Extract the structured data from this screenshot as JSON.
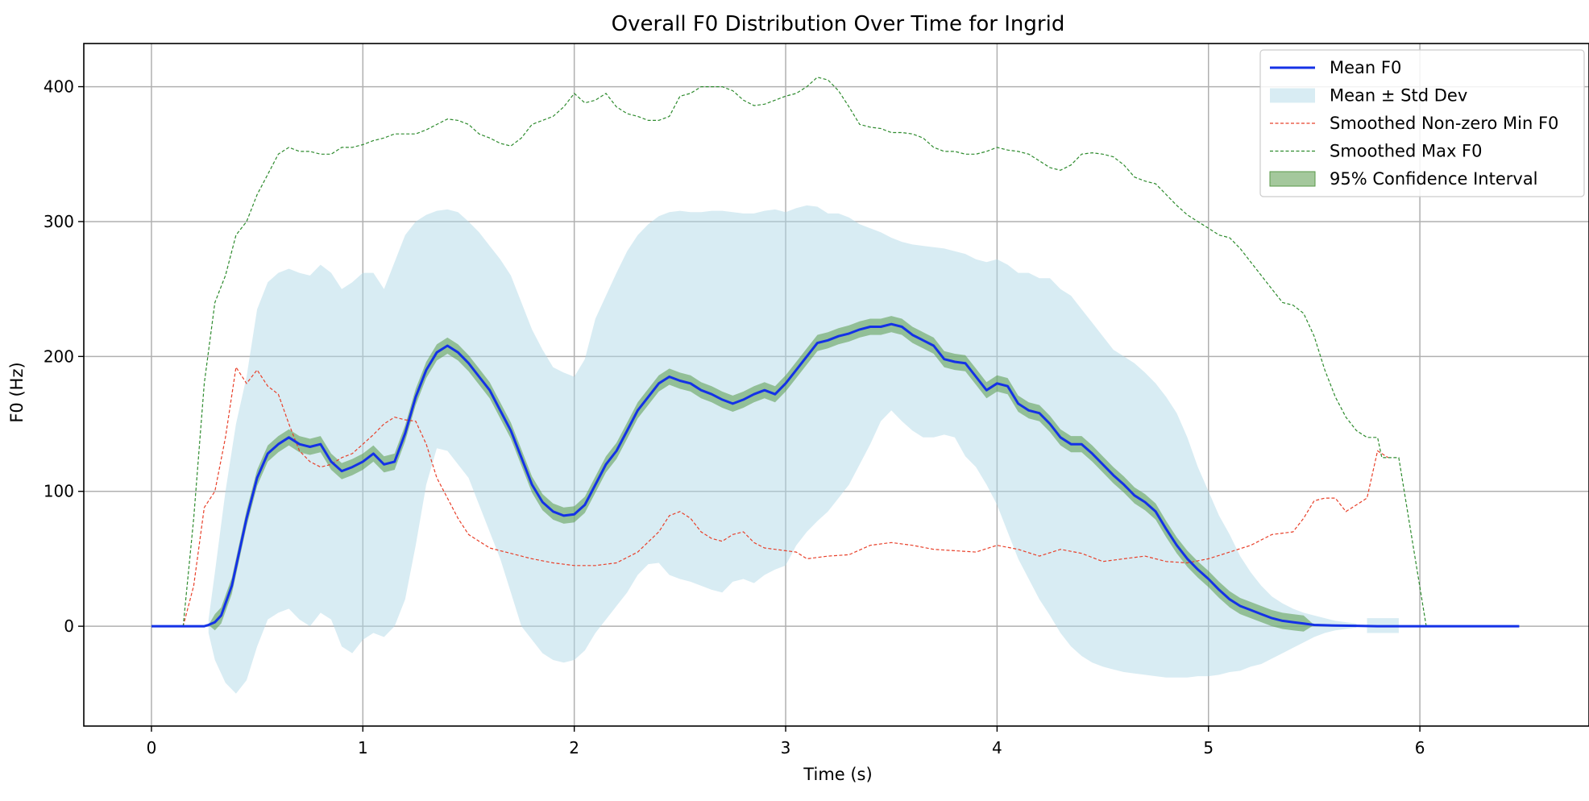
{
  "chart_data": {
    "type": "line",
    "title": "Overall F0 Distribution Over Time for Ingrid",
    "xlabel": "Time (s)",
    "ylabel": "F0 (Hz)",
    "xlim": [
      -0.32,
      6.8
    ],
    "ylim": [
      -74,
      432
    ],
    "xticks": [
      0,
      1,
      2,
      3,
      4,
      5,
      6
    ],
    "xtick_labels": [
      "0",
      "1",
      "2",
      "3",
      "4",
      "5",
      "6"
    ],
    "yticks": [
      0,
      100,
      200,
      300,
      400
    ],
    "ytick_labels": [
      "0",
      "100",
      "200",
      "300",
      "400"
    ],
    "grid": true,
    "legend_position": "top-right",
    "colors": {
      "mean": "#1432e6",
      "std_band": "#add8e6",
      "min": "#e8402a",
      "max": "#2e8b2e",
      "ci": "#5a9a4a",
      "grid": "#b0b0b0"
    },
    "legend": [
      {
        "label": "Mean F0",
        "kind": "line-solid"
      },
      {
        "label": "Mean ± Std Dev",
        "kind": "patch-std"
      },
      {
        "label": "Smoothed Non-zero Min F0",
        "kind": "line-dash-red"
      },
      {
        "label": "Smoothed Max F0",
        "kind": "line-dash-green"
      },
      {
        "label": "95% Confidence Interval",
        "kind": "patch-ci"
      }
    ],
    "series": [
      {
        "name": "Mean F0",
        "x": [
          0,
          0.25,
          0.27,
          0.3,
          0.33,
          0.38,
          0.45,
          0.5,
          0.55,
          0.6,
          0.65,
          0.7,
          0.75,
          0.8,
          0.85,
          0.9,
          0.95,
          1.0,
          1.05,
          1.1,
          1.15,
          1.2,
          1.25,
          1.3,
          1.35,
          1.4,
          1.45,
          1.5,
          1.55,
          1.6,
          1.65,
          1.7,
          1.75,
          1.8,
          1.85,
          1.9,
          1.95,
          2.0,
          2.05,
          2.1,
          2.15,
          2.2,
          2.25,
          2.3,
          2.35,
          2.4,
          2.45,
          2.5,
          2.55,
          2.6,
          2.65,
          2.7,
          2.75,
          2.8,
          2.85,
          2.9,
          2.95,
          3.0,
          3.05,
          3.1,
          3.15,
          3.2,
          3.25,
          3.3,
          3.35,
          3.4,
          3.45,
          3.5,
          3.55,
          3.6,
          3.65,
          3.7,
          3.75,
          3.8,
          3.85,
          3.9,
          3.95,
          4.0,
          4.05,
          4.1,
          4.15,
          4.2,
          4.25,
          4.3,
          4.35,
          4.4,
          4.45,
          4.5,
          4.55,
          4.6,
          4.65,
          4.7,
          4.75,
          4.8,
          4.85,
          4.9,
          4.95,
          5.0,
          5.05,
          5.1,
          5.15,
          5.2,
          5.25,
          5.3,
          5.35,
          5.4,
          5.45,
          5.5,
          5.6,
          5.7,
          5.8,
          6.0,
          6.2,
          6.47
        ],
        "y": [
          0,
          0,
          1,
          3,
          8,
          30,
          80,
          110,
          128,
          135,
          140,
          135,
          133,
          135,
          122,
          115,
          118,
          122,
          128,
          120,
          122,
          143,
          170,
          190,
          203,
          208,
          203,
          195,
          185,
          175,
          160,
          145,
          125,
          105,
          92,
          85,
          82,
          83,
          90,
          105,
          120,
          130,
          145,
          160,
          170,
          180,
          185,
          182,
          180,
          175,
          172,
          168,
          165,
          168,
          172,
          175,
          172,
          180,
          190,
          200,
          210,
          212,
          215,
          217,
          220,
          222,
          222,
          224,
          222,
          216,
          212,
          208,
          198,
          196,
          195,
          185,
          175,
          180,
          178,
          165,
          160,
          158,
          150,
          140,
          135,
          135,
          128,
          120,
          112,
          105,
          97,
          92,
          85,
          72,
          60,
          50,
          42,
          35,
          27,
          20,
          15,
          12,
          9,
          6,
          4,
          3,
          2,
          1,
          0.5,
          0.3,
          0,
          0,
          0,
          0
        ]
      },
      {
        "name": "Mean ± Std Dev",
        "x": [
          0.27,
          0.3,
          0.35,
          0.4,
          0.45,
          0.5,
          0.55,
          0.6,
          0.65,
          0.7,
          0.75,
          0.8,
          0.85,
          0.9,
          0.95,
          1.0,
          1.05,
          1.1,
          1.15,
          1.2,
          1.25,
          1.3,
          1.35,
          1.4,
          1.45,
          1.5,
          1.55,
          1.6,
          1.65,
          1.7,
          1.75,
          1.8,
          1.85,
          1.9,
          1.95,
          2.0,
          2.05,
          2.1,
          2.15,
          2.2,
          2.25,
          2.3,
          2.35,
          2.4,
          2.45,
          2.5,
          2.55,
          2.6,
          2.65,
          2.7,
          2.75,
          2.8,
          2.85,
          2.9,
          2.95,
          3.0,
          3.05,
          3.1,
          3.15,
          3.2,
          3.25,
          3.3,
          3.35,
          3.4,
          3.45,
          3.5,
          3.55,
          3.6,
          3.65,
          3.7,
          3.75,
          3.8,
          3.85,
          3.9,
          3.95,
          4.0,
          4.05,
          4.1,
          4.15,
          4.2,
          4.25,
          4.3,
          4.35,
          4.4,
          4.45,
          4.5,
          4.55,
          4.6,
          4.65,
          4.7,
          4.75,
          4.8,
          4.85,
          4.9,
          4.95,
          5.0,
          5.05,
          5.1,
          5.15,
          5.2,
          5.25,
          5.3,
          5.35,
          5.4,
          5.45,
          5.5,
          5.55,
          5.6,
          5.65,
          5.7
        ],
        "upper": [
          5,
          40,
          100,
          150,
          185,
          235,
          255,
          262,
          265,
          262,
          260,
          268,
          262,
          250,
          255,
          262,
          262,
          250,
          270,
          290,
          300,
          305,
          308,
          309,
          307,
          300,
          292,
          282,
          272,
          260,
          240,
          220,
          205,
          192,
          188,
          185,
          198,
          228,
          245,
          262,
          278,
          290,
          298,
          304,
          307,
          308,
          307,
          307,
          308,
          308,
          307,
          306,
          306,
          308,
          309,
          307,
          310,
          312,
          311,
          306,
          306,
          303,
          298,
          295,
          292,
          288,
          285,
          283,
          282,
          281,
          280,
          278,
          276,
          272,
          270,
          272,
          268,
          262,
          262,
          258,
          258,
          250,
          245,
          235,
          225,
          215,
          205,
          200,
          195,
          188,
          180,
          170,
          158,
          140,
          118,
          100,
          82,
          68,
          52,
          40,
          30,
          22,
          17,
          13,
          10,
          8,
          6,
          4,
          3,
          2
        ],
        "lower": [
          -5,
          -25,
          -42,
          -50,
          -40,
          -15,
          5,
          10,
          13,
          5,
          0,
          10,
          5,
          -15,
          -20,
          -10,
          -5,
          -8,
          0,
          20,
          60,
          105,
          132,
          130,
          120,
          110,
          90,
          70,
          50,
          25,
          0,
          -10,
          -20,
          -25,
          -27,
          -25,
          -18,
          -5,
          5,
          15,
          25,
          38,
          46,
          47,
          38,
          35,
          33,
          30,
          27,
          25,
          33,
          35,
          32,
          38,
          42,
          45,
          60,
          70,
          78,
          85,
          95,
          105,
          120,
          135,
          152,
          160,
          152,
          145,
          140,
          140,
          142,
          140,
          126,
          118,
          105,
          90,
          70,
          50,
          35,
          20,
          8,
          -5,
          -15,
          -22,
          -27,
          -30,
          -32,
          -34,
          -35,
          -36,
          -37,
          -38,
          -38,
          -38,
          -37,
          -37,
          -36,
          -34,
          -33,
          -30,
          -28,
          -24,
          -20,
          -16,
          -12,
          -8,
          -5,
          -3,
          -2,
          -1
        ]
      },
      {
        "name": "Mean ± Std Dev (tail)",
        "x": [
          5.75,
          5.8,
          5.85,
          5.9
        ],
        "upper": [
          6,
          6,
          6,
          6
        ],
        "lower": [
          -5,
          -5,
          -5,
          -5
        ]
      },
      {
        "name": "95% Confidence Interval",
        "x": [
          0,
          0.25,
          0.27,
          0.3,
          0.33,
          0.38,
          0.45,
          0.5,
          0.55,
          0.6,
          0.65,
          0.7,
          0.75,
          0.8,
          0.85,
          0.9,
          0.95,
          1.0,
          1.05,
          1.1,
          1.15,
          1.2,
          1.25,
          1.3,
          1.35,
          1.4,
          1.45,
          1.5,
          1.55,
          1.6,
          1.65,
          1.7,
          1.75,
          1.8,
          1.85,
          1.9,
          1.95,
          2.0,
          2.05,
          2.1,
          2.15,
          2.2,
          2.25,
          2.3,
          2.35,
          2.4,
          2.45,
          2.5,
          2.55,
          2.6,
          2.65,
          2.7,
          2.75,
          2.8,
          2.85,
          2.9,
          2.95,
          3.0,
          3.05,
          3.1,
          3.15,
          3.2,
          3.25,
          3.3,
          3.35,
          3.4,
          3.45,
          3.5,
          3.55,
          3.6,
          3.65,
          3.7,
          3.75,
          3.8,
          3.85,
          3.9,
          3.95,
          4.0,
          4.05,
          4.1,
          4.15,
          4.2,
          4.25,
          4.3,
          4.35,
          4.4,
          4.45,
          4.5,
          4.55,
          4.6,
          4.65,
          4.7,
          4.75,
          4.8,
          4.85,
          4.9,
          4.95,
          5.0,
          5.05,
          5.1,
          5.15,
          5.2,
          5.25,
          5.3,
          5.35,
          5.4,
          5.45,
          5.5,
          5.6,
          5.7,
          5.8,
          6.0,
          6.2,
          6.47
        ],
        "half_width": 6
      },
      {
        "name": "Smoothed Non-zero Min F0",
        "x": [
          0,
          0.15,
          0.2,
          0.25,
          0.3,
          0.35,
          0.4,
          0.45,
          0.5,
          0.55,
          0.6,
          0.65,
          0.7,
          0.75,
          0.8,
          0.85,
          0.9,
          0.95,
          1.0,
          1.05,
          1.1,
          1.15,
          1.2,
          1.25,
          1.3,
          1.35,
          1.4,
          1.45,
          1.5,
          1.55,
          1.6,
          1.65,
          1.7,
          1.75,
          1.8,
          1.9,
          2.0,
          2.1,
          2.2,
          2.3,
          2.4,
          2.45,
          2.5,
          2.55,
          2.6,
          2.65,
          2.7,
          2.75,
          2.8,
          2.85,
          2.9,
          2.95,
          3.0,
          3.05,
          3.1,
          3.2,
          3.3,
          3.4,
          3.5,
          3.6,
          3.7,
          3.8,
          3.9,
          4.0,
          4.1,
          4.2,
          4.3,
          4.4,
          4.5,
          4.6,
          4.7,
          4.8,
          4.9,
          5.0,
          5.1,
          5.2,
          5.3,
          5.4,
          5.45,
          5.5,
          5.55,
          5.6,
          5.65,
          5.7,
          5.75,
          5.8,
          5.85
        ],
        "y": [
          0,
          0,
          30,
          88,
          100,
          140,
          192,
          180,
          190,
          178,
          172,
          150,
          130,
          122,
          118,
          120,
          125,
          128,
          135,
          142,
          150,
          155,
          153,
          152,
          135,
          110,
          95,
          80,
          68,
          63,
          58,
          56,
          54,
          52,
          50,
          47,
          45,
          45,
          47,
          55,
          70,
          82,
          85,
          80,
          70,
          65,
          63,
          68,
          70,
          62,
          58,
          57,
          56,
          55,
          50,
          52,
          53,
          60,
          62,
          60,
          57,
          56,
          55,
          60,
          57,
          52,
          57,
          54,
          48,
          50,
          52,
          48,
          47,
          50,
          55,
          60,
          68,
          70,
          80,
          93,
          95,
          95,
          85,
          90,
          95,
          130,
          125
        ]
      },
      {
        "name": "Smoothed Max F0",
        "x": [
          0,
          0.15,
          0.2,
          0.25,
          0.3,
          0.35,
          0.4,
          0.45,
          0.5,
          0.55,
          0.6,
          0.65,
          0.7,
          0.75,
          0.8,
          0.85,
          0.9,
          0.95,
          1.0,
          1.05,
          1.1,
          1.15,
          1.2,
          1.25,
          1.3,
          1.35,
          1.4,
          1.45,
          1.5,
          1.55,
          1.6,
          1.65,
          1.7,
          1.75,
          1.8,
          1.85,
          1.9,
          1.95,
          2.0,
          2.05,
          2.1,
          2.15,
          2.2,
          2.25,
          2.3,
          2.35,
          2.4,
          2.45,
          2.5,
          2.55,
          2.6,
          2.65,
          2.7,
          2.75,
          2.8,
          2.85,
          2.9,
          2.95,
          3.0,
          3.05,
          3.1,
          3.15,
          3.2,
          3.25,
          3.3,
          3.35,
          3.4,
          3.45,
          3.5,
          3.55,
          3.6,
          3.65,
          3.7,
          3.75,
          3.8,
          3.85,
          3.9,
          3.95,
          4.0,
          4.05,
          4.1,
          4.15,
          4.2,
          4.25,
          4.3,
          4.35,
          4.4,
          4.45,
          4.5,
          4.55,
          4.6,
          4.65,
          4.7,
          4.75,
          4.8,
          4.85,
          4.9,
          4.95,
          5.0,
          5.05,
          5.1,
          5.15,
          5.2,
          5.25,
          5.3,
          5.35,
          5.4,
          5.45,
          5.5,
          5.55,
          5.6,
          5.65,
          5.7,
          5.75,
          5.8,
          5.82,
          5.85,
          5.9,
          6.03,
          6.2,
          6.47
        ],
        "y": [
          0,
          0,
          80,
          180,
          240,
          260,
          290,
          300,
          320,
          335,
          350,
          355,
          352,
          352,
          350,
          350,
          355,
          355,
          357,
          360,
          362,
          365,
          365,
          365,
          368,
          372,
          376,
          375,
          372,
          365,
          362,
          358,
          356,
          362,
          372,
          375,
          378,
          385,
          395,
          388,
          390,
          395,
          385,
          380,
          378,
          375,
          375,
          378,
          393,
          395,
          400,
          400,
          400,
          397,
          390,
          386,
          387,
          390,
          393,
          395,
          400,
          407,
          405,
          397,
          385,
          372,
          370,
          369,
          366,
          366,
          365,
          362,
          355,
          352,
          352,
          350,
          350,
          352,
          355,
          353,
          352,
          350,
          345,
          340,
          338,
          342,
          350,
          351,
          350,
          348,
          342,
          333,
          330,
          328,
          320,
          312,
          305,
          300,
          295,
          290,
          288,
          280,
          270,
          260,
          250,
          240,
          238,
          232,
          215,
          190,
          170,
          155,
          145,
          140,
          140,
          125,
          125,
          125,
          0,
          0,
          0
        ]
      }
    ]
  }
}
